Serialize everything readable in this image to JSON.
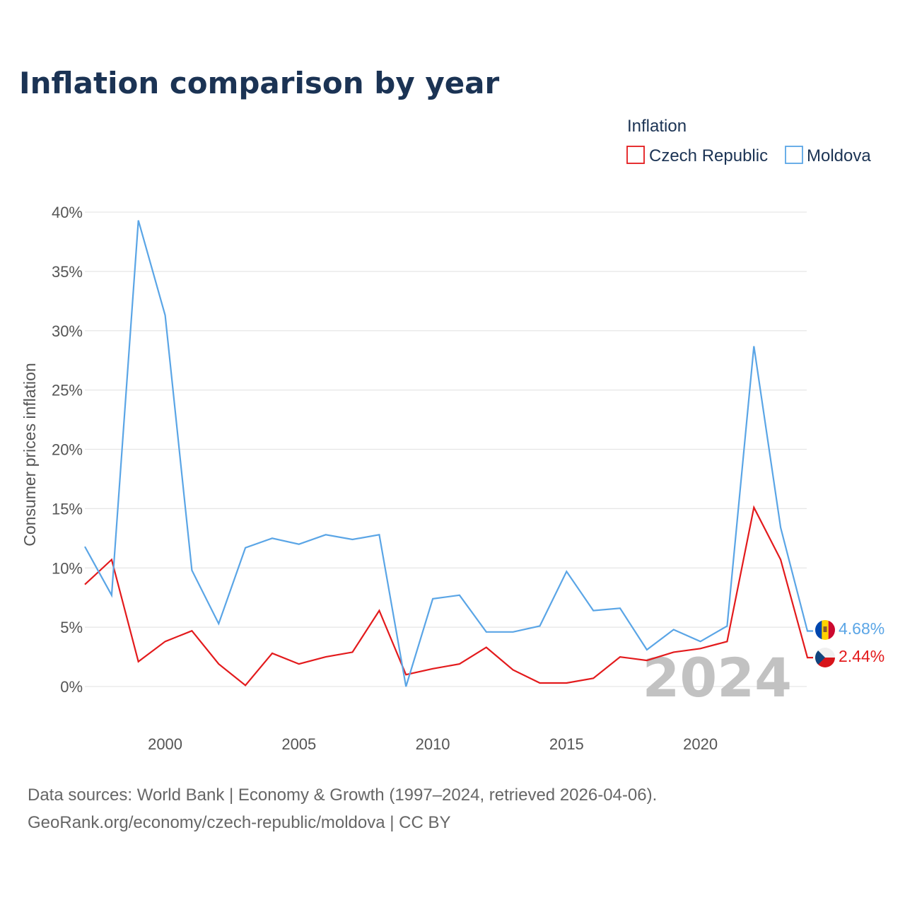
{
  "title": "Inflation comparison by year",
  "legend": {
    "title": "Inflation",
    "items": [
      {
        "name": "Czech Republic",
        "color": "#e31a1c"
      },
      {
        "name": "Moldova",
        "color": "#5aa5e6"
      }
    ]
  },
  "watermark": "2024",
  "footer": {
    "line1": "Data sources: World Bank | Economy & Growth (1997–2024, retrieved 2026-04-06).",
    "line2": "GeoRank.org/economy/czech-republic/moldova | CC BY"
  },
  "chart_data": {
    "type": "line",
    "title": "Inflation comparison by year",
    "xlabel": "",
    "ylabel": "Consumer prices inflation",
    "xlim": [
      1997,
      2024
    ],
    "ylim": [
      0,
      40
    ],
    "x_ticks": [
      2000,
      2005,
      2010,
      2015,
      2020
    ],
    "y_ticks": [
      0,
      5,
      10,
      15,
      20,
      25,
      30,
      35,
      40
    ],
    "y_tick_labels": [
      "0%",
      "5%",
      "10%",
      "15%",
      "20%",
      "25%",
      "30%",
      "35%",
      "40%"
    ],
    "grid": true,
    "legend_position": "top-right",
    "x": [
      1997,
      1998,
      1999,
      2000,
      2001,
      2002,
      2003,
      2004,
      2005,
      2006,
      2007,
      2008,
      2009,
      2010,
      2011,
      2012,
      2013,
      2014,
      2015,
      2016,
      2017,
      2018,
      2019,
      2020,
      2021,
      2022,
      2023,
      2024
    ],
    "series": [
      {
        "name": "Czech Republic",
        "color": "#e31a1c",
        "end_label": "2.44%",
        "values": [
          8.6,
          10.7,
          2.1,
          3.8,
          4.7,
          1.9,
          0.1,
          2.8,
          1.9,
          2.5,
          2.9,
          6.4,
          1.0,
          1.5,
          1.9,
          3.3,
          1.4,
          0.3,
          0.3,
          0.7,
          2.5,
          2.2,
          2.9,
          3.2,
          3.8,
          15.1,
          10.7,
          2.44
        ]
      },
      {
        "name": "Moldova",
        "color": "#5aa5e6",
        "end_label": "4.68%",
        "values": [
          11.8,
          7.7,
          39.3,
          31.3,
          9.8,
          5.3,
          11.7,
          12.5,
          12.0,
          12.8,
          12.4,
          12.8,
          0.0,
          7.4,
          7.7,
          4.6,
          4.6,
          5.1,
          9.7,
          6.4,
          6.6,
          3.1,
          4.8,
          3.8,
          5.1,
          28.7,
          13.4,
          4.68
        ]
      }
    ]
  }
}
